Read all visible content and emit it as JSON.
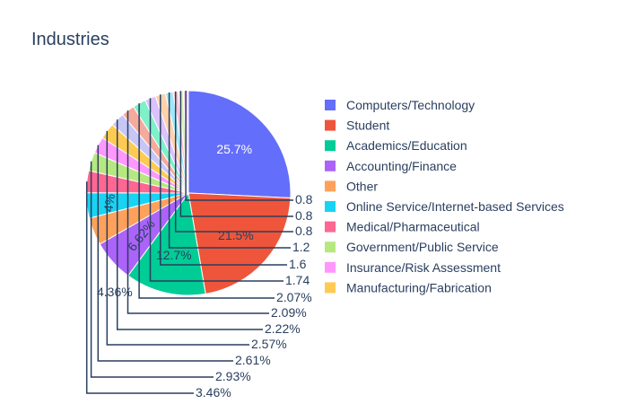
{
  "chart_data": {
    "type": "pie",
    "title": "Industries",
    "legend_position": "right",
    "slices": [
      {
        "name": "Computers/Technology",
        "value": 25.7,
        "label": "25.7%",
        "color": "#636efa"
      },
      {
        "name": "Student",
        "value": 21.5,
        "label": "21.5%",
        "color": "#EF553B"
      },
      {
        "name": "Academics/Education",
        "value": 12.7,
        "label": "12.7%",
        "color": "#00cc96"
      },
      {
        "name": "Accounting/Finance",
        "value": 6.62,
        "label": "6.62%",
        "color": "#ab63fa"
      },
      {
        "name": "Other",
        "value": 4.36,
        "label": "4.36%",
        "color": "#FFA15A"
      },
      {
        "name": "Online Service/Internet-based Services",
        "value": 4.0,
        "label": "4%",
        "color": "#19d3f3"
      },
      {
        "name": "Medical/Pharmaceutical",
        "value": 3.46,
        "label": "3.46%",
        "color": "#FF6692"
      },
      {
        "name": "Government/Public Service",
        "value": 2.93,
        "label": "2.93%",
        "color": "#B6E880"
      },
      {
        "name": "Insurance/Risk Assessment",
        "value": 2.61,
        "label": "2.61%",
        "color": "#FF97FF"
      },
      {
        "name": "Manufacturing/Fabrication",
        "value": 2.57,
        "label": "2.57%",
        "color": "#FECB52"
      },
      {
        "name": "",
        "value": 2.22,
        "label": "2.22%",
        "color": "#c6c6f7"
      },
      {
        "name": "",
        "value": 2.09,
        "label": "2.09%",
        "color": "#f5ab9c"
      },
      {
        "name": "",
        "value": 2.07,
        "label": "2.07%",
        "color": "#7ff0c8"
      },
      {
        "name": "",
        "value": 1.74,
        "label": "1.74",
        "color": "#dcc1fd"
      },
      {
        "name": "",
        "value": 1.6,
        "label": "1.6",
        "color": "#ffd2ac"
      },
      {
        "name": "",
        "value": 1.2,
        "label": "1.2",
        "color": "#9ee9f9"
      },
      {
        "name": "",
        "value": 0.8,
        "label": "0.8",
        "color": "#ffc2d3"
      },
      {
        "name": "",
        "value": 0.8,
        "label": "0.8",
        "color": "#daf3c0"
      },
      {
        "name": "",
        "value": 0.8,
        "label": "0.8",
        "color": "#ffd2ff"
      }
    ]
  }
}
